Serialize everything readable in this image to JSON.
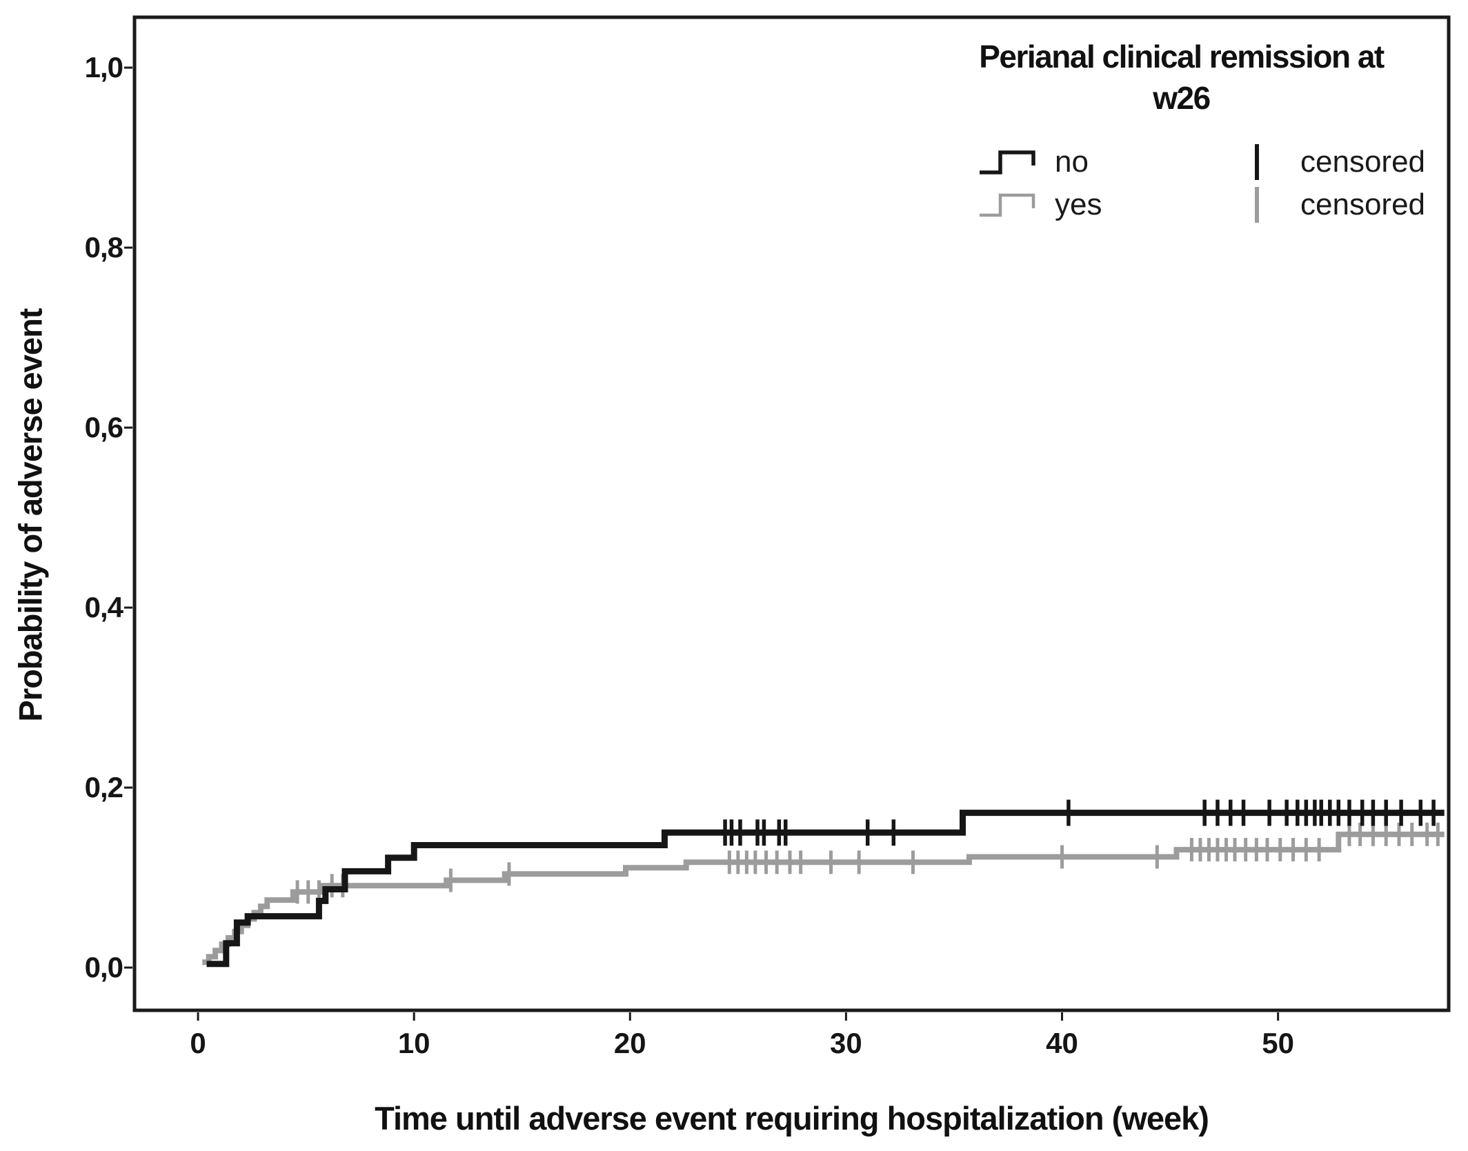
{
  "chart_data": {
    "type": "line",
    "subtype": "kaplan-meier-step",
    "title": "",
    "xlabel": "Time until adverse event requiring hospitalization (week)",
    "ylabel": "Probability of adverse event",
    "xlim": [
      -2.94,
      57.9
    ],
    "ylim": [
      -0.0475,
      1.056
    ],
    "grid": false,
    "x_ticks": {
      "values": [
        0,
        10,
        20,
        30,
        40,
        50
      ],
      "labels": [
        "0",
        "10",
        "20",
        "30",
        "40",
        "50"
      ]
    },
    "y_ticks": {
      "values": [
        0,
        0.2,
        0.4,
        0.6,
        0.8,
        1.0
      ],
      "labels": [
        "0,0",
        "0,2",
        "0,4",
        "0,6",
        "0,8",
        "1,0"
      ]
    },
    "legend": {
      "position": "top-right",
      "title": "Perianal clinical remission at w26",
      "title_lines": [
        "Perianal clinical remission at",
        "w26"
      ],
      "items": [
        {
          "label": "no",
          "censored_label": "censored"
        },
        {
          "label": "yes",
          "censored_label": "censored"
        }
      ]
    },
    "series": [
      {
        "name": "no",
        "color": "#161616",
        "steps": [
          [
            0.4,
            0.004
          ],
          [
            1.3,
            0.027
          ],
          [
            1.8,
            0.05
          ],
          [
            2.3,
            0.057
          ],
          [
            5.6,
            0.074
          ],
          [
            5.9,
            0.087
          ],
          [
            6.8,
            0.107
          ],
          [
            8.8,
            0.122
          ],
          [
            10.0,
            0.136
          ],
          [
            21.6,
            0.15
          ],
          [
            35.4,
            0.172
          ]
        ],
        "end_week": 57.7,
        "censored_weeks": [
          24.4,
          24.7,
          25.1,
          25.9,
          26.2,
          26.9,
          27.2,
          31.0,
          32.2,
          40.3,
          46.6,
          47.2,
          47.8,
          48.4,
          49.6,
          50.4,
          50.9,
          51.3,
          51.7,
          52.0,
          52.4,
          52.8,
          53.3,
          53.9,
          54.4,
          55.0,
          55.7,
          56.6,
          57.2
        ]
      },
      {
        "name": "yes",
        "color": "#9c9c9c",
        "steps": [
          [
            0.2,
            0.006
          ],
          [
            0.5,
            0.012
          ],
          [
            0.8,
            0.019
          ],
          [
            1.1,
            0.026
          ],
          [
            1.4,
            0.033
          ],
          [
            1.7,
            0.04
          ],
          [
            2.0,
            0.047
          ],
          [
            2.3,
            0.054
          ],
          [
            2.6,
            0.061
          ],
          [
            2.9,
            0.068
          ],
          [
            3.2,
            0.075
          ],
          [
            4.4,
            0.084
          ],
          [
            5.7,
            0.091
          ],
          [
            11.5,
            0.097
          ],
          [
            14.2,
            0.104
          ],
          [
            19.8,
            0.111
          ],
          [
            22.6,
            0.117
          ],
          [
            35.7,
            0.123
          ],
          [
            45.3,
            0.131
          ],
          [
            52.8,
            0.148
          ]
        ],
        "end_week": 57.7,
        "censored_weeks": [
          4.6,
          5.1,
          5.6,
          6.2,
          6.7,
          11.7,
          14.4,
          24.6,
          25.0,
          25.4,
          25.8,
          26.3,
          26.8,
          27.4,
          27.9,
          29.3,
          30.6,
          33.1,
          40.0,
          44.4,
          46.0,
          46.4,
          46.8,
          47.2,
          47.6,
          48.0,
          48.5,
          49.0,
          49.5,
          50.1,
          50.7,
          51.3,
          51.9,
          53.3,
          53.8,
          54.4,
          55.0,
          55.6,
          56.2,
          56.9,
          57.4
        ]
      }
    ]
  }
}
